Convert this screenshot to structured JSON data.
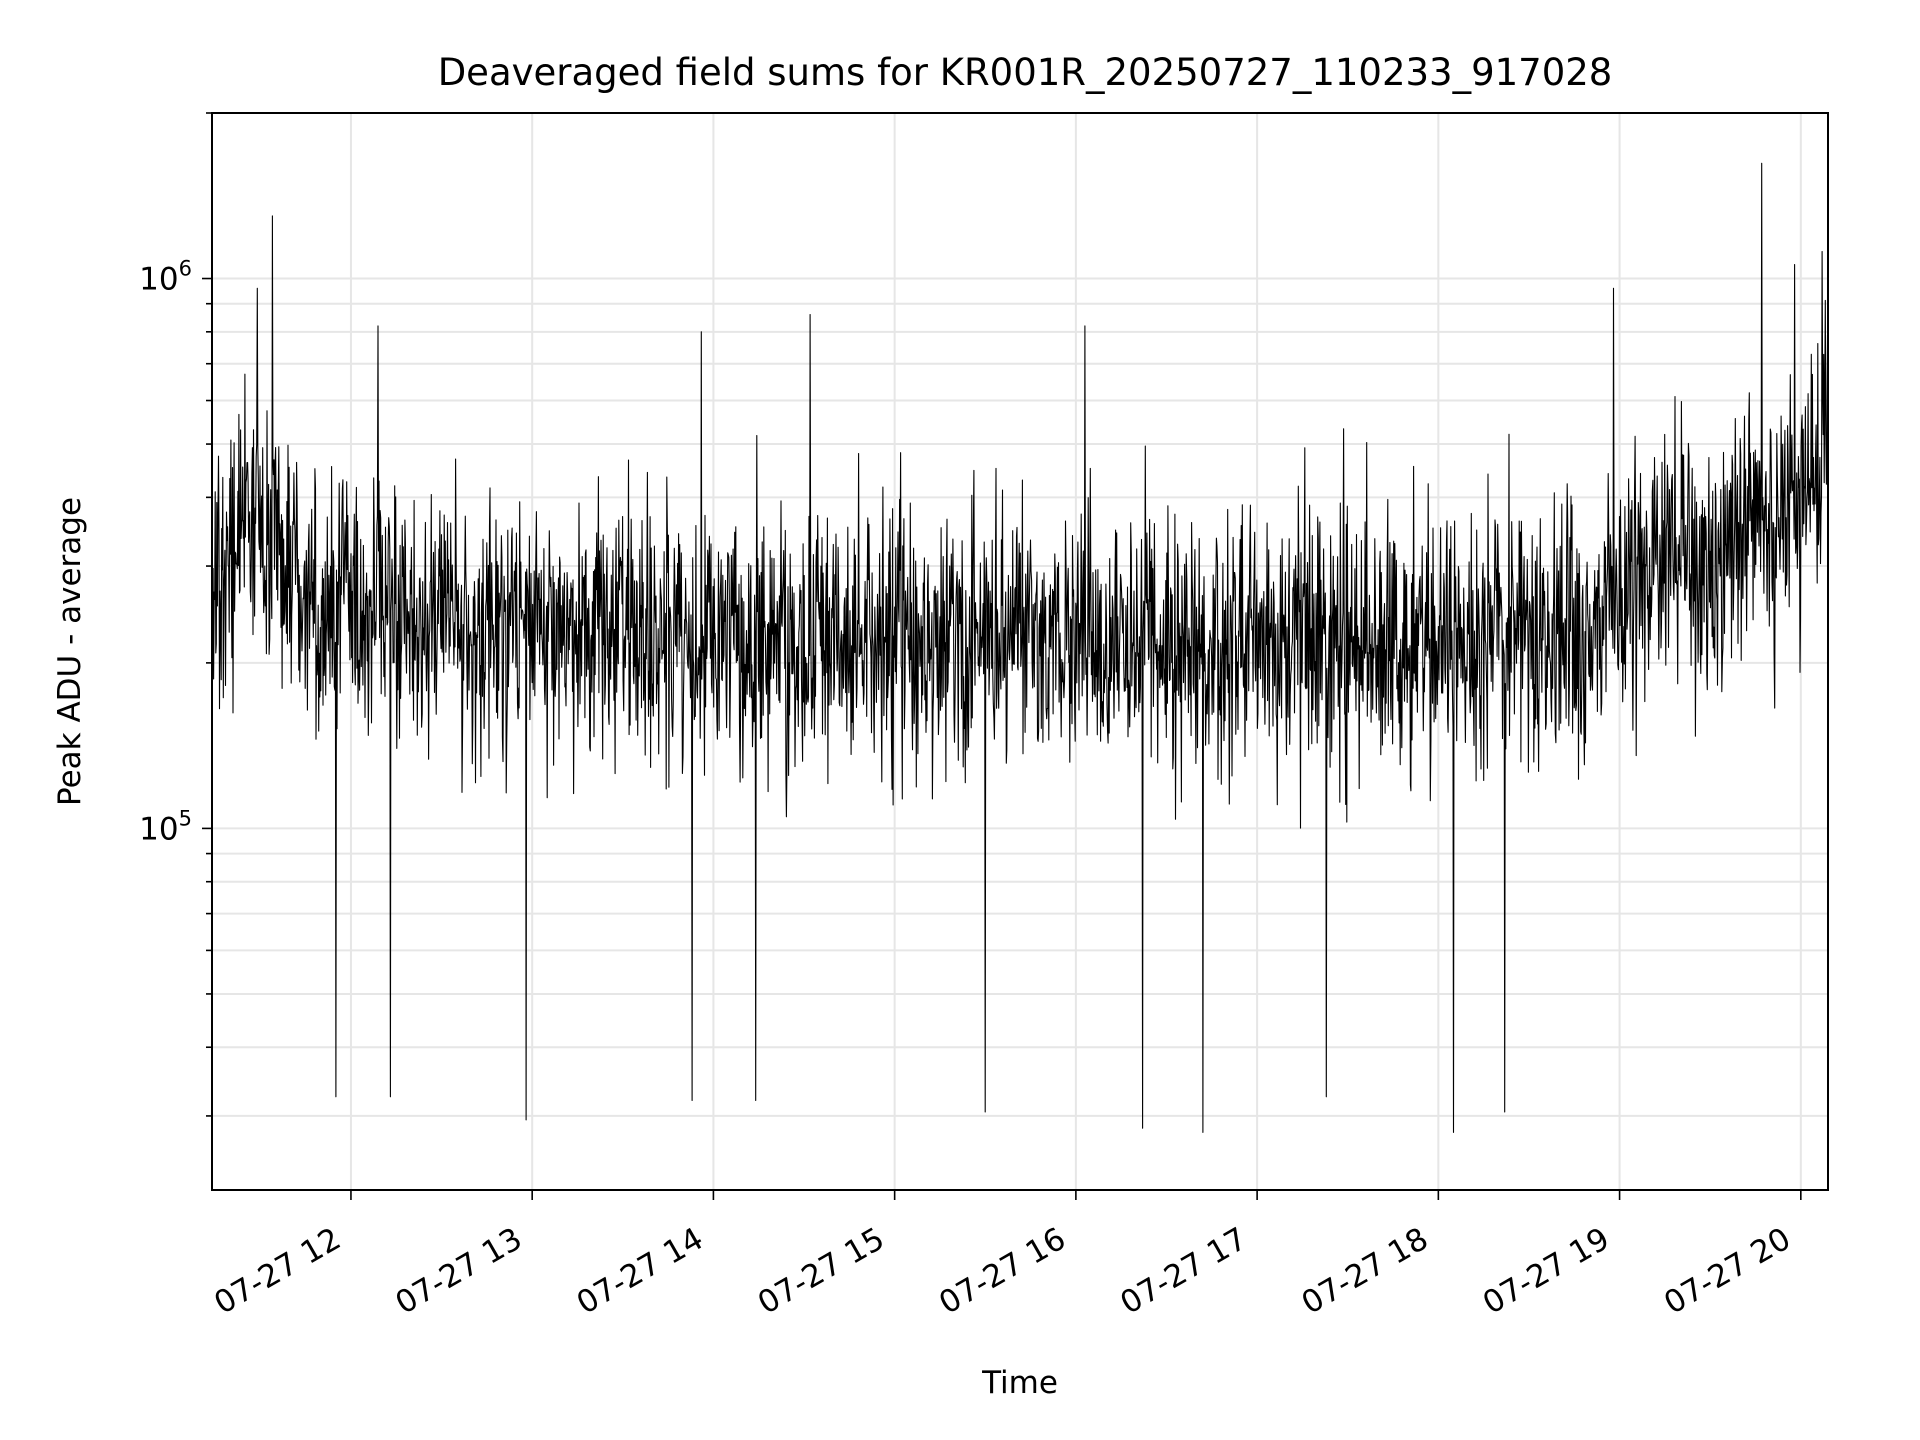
{
  "chart_data": {
    "type": "line",
    "title": "Deaveraged field sums for KR001R_20250727_110233_917028",
    "xlabel": "Time",
    "ylabel": "Peak ADU - average",
    "yscale": "log",
    "ylim": [
      22000,
      2000000
    ],
    "xlim": [
      "2025-07-27T11:14:00",
      "2025-07-27T20:09:00"
    ],
    "grid": true,
    "line_color": "#000000",
    "grid_color": "#e6e6e6",
    "x_ticks": [
      {
        "value": "2025-07-27T12:00:00",
        "label": "07-27 12"
      },
      {
        "value": "2025-07-27T13:00:00",
        "label": "07-27 13"
      },
      {
        "value": "2025-07-27T14:00:00",
        "label": "07-27 14"
      },
      {
        "value": "2025-07-27T15:00:00",
        "label": "07-27 15"
      },
      {
        "value": "2025-07-27T16:00:00",
        "label": "07-27 16"
      },
      {
        "value": "2025-07-27T17:00:00",
        "label": "07-27 17"
      },
      {
        "value": "2025-07-27T18:00:00",
        "label": "07-27 18"
      },
      {
        "value": "2025-07-27T19:00:00",
        "label": "07-27 19"
      },
      {
        "value": "2025-07-27T20:00:00",
        "label": "07-27 20"
      }
    ],
    "y_major_ticks": [
      {
        "value": 100000,
        "base": "10",
        "exp": "5"
      },
      {
        "value": 1000000,
        "base": "10",
        "exp": "6"
      }
    ],
    "series": [
      {
        "x": [
          "2025-07-27T11:14:00",
          "2025-07-27T11:20:00",
          "2025-07-27T11:26:00",
          "2025-07-27T11:30:00",
          "2025-07-27T11:36:00",
          "2025-07-27T11:42:00",
          "2025-07-27T11:48:00",
          "2025-07-27T11:54:00",
          "2025-07-27T12:00:00",
          "2025-07-27T12:15:00",
          "2025-07-27T12:30:00",
          "2025-07-27T12:45:00",
          "2025-07-27T13:00:00",
          "2025-07-27T13:15:00",
          "2025-07-27T13:30:00",
          "2025-07-27T13:45:00",
          "2025-07-27T14:00:00",
          "2025-07-27T14:15:00",
          "2025-07-27T14:30:00",
          "2025-07-27T14:45:00",
          "2025-07-27T15:00:00",
          "2025-07-27T15:15:00",
          "2025-07-27T15:30:00",
          "2025-07-27T15:45:00",
          "2025-07-27T16:00:00",
          "2025-07-27T16:15:00",
          "2025-07-27T16:30:00",
          "2025-07-27T16:45:00",
          "2025-07-27T17:00:00",
          "2025-07-27T17:15:00",
          "2025-07-27T17:30:00",
          "2025-07-27T17:45:00",
          "2025-07-27T18:00:00",
          "2025-07-27T18:15:00",
          "2025-07-27T18:30:00",
          "2025-07-27T18:45:00",
          "2025-07-27T19:00:00",
          "2025-07-27T19:15:00",
          "2025-07-27T19:30:00",
          "2025-07-27T19:45:00",
          "2025-07-27T20:00:00",
          "2025-07-27T20:09:00"
        ],
        "center": [
          260000,
          300000,
          420000,
          350000,
          300000,
          270000,
          260000,
          250000,
          250000,
          245000,
          240000,
          235000,
          235000,
          230000,
          225000,
          225000,
          220000,
          220000,
          220000,
          222000,
          225000,
          225000,
          225000,
          225000,
          225000,
          222000,
          220000,
          220000,
          220000,
          220000,
          220000,
          220000,
          222000,
          222000,
          225000,
          235000,
          260000,
          300000,
          320000,
          340000,
          380000,
          500000
        ],
        "peaks": [
          {
            "x": "2025-07-27T11:34:00",
            "y": 1300000
          },
          {
            "x": "2025-07-27T11:29:00",
            "y": 960000
          },
          {
            "x": "2025-07-27T12:09:00",
            "y": 820000
          },
          {
            "x": "2025-07-27T13:56:00",
            "y": 800000
          },
          {
            "x": "2025-07-27T14:32:00",
            "y": 860000
          },
          {
            "x": "2025-07-27T16:03:00",
            "y": 820000
          },
          {
            "x": "2025-07-27T18:58:00",
            "y": 960000
          },
          {
            "x": "2025-07-27T19:47:00",
            "y": 1620000
          },
          {
            "x": "2025-07-27T20:07:00",
            "y": 1120000
          },
          {
            "x": "2025-07-27T19:58:00",
            "y": 1060000
          }
        ],
        "dips": [
          {
            "x": "2025-07-27T11:55:00",
            "y": 32500
          },
          {
            "x": "2025-07-27T12:13:00",
            "y": 32500
          },
          {
            "x": "2025-07-27T12:58:00",
            "y": 29500
          },
          {
            "x": "2025-07-27T13:53:00",
            "y": 32000
          },
          {
            "x": "2025-07-27T14:14:00",
            "y": 32000
          },
          {
            "x": "2025-07-27T15:30:00",
            "y": 30500
          },
          {
            "x": "2025-07-27T16:22:00",
            "y": 28500
          },
          {
            "x": "2025-07-27T16:42:00",
            "y": 28000
          },
          {
            "x": "2025-07-27T18:05:00",
            "y": 28000
          },
          {
            "x": "2025-07-27T18:22:00",
            "y": 30500
          },
          {
            "x": "2025-07-27T17:23:00",
            "y": 32500
          }
        ]
      }
    ]
  }
}
